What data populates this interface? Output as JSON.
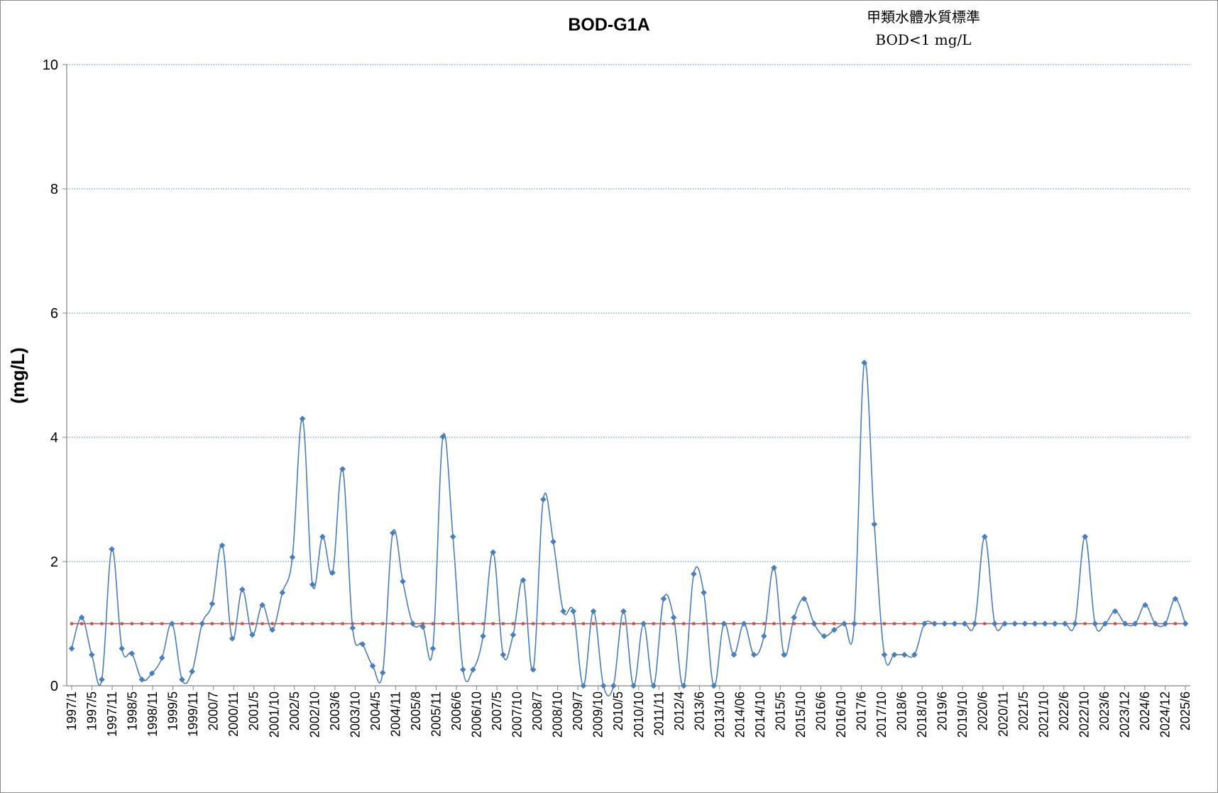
{
  "chart_data": {
    "type": "line",
    "title": "BOD-G1A",
    "annotation": [
      "甲類水體水質標準",
      "BOD<1 mg/L"
    ],
    "ylabel": "(mg/L)",
    "xlabel": "",
    "ylim": [
      0,
      10
    ],
    "yticks": [
      0,
      2,
      4,
      6,
      8,
      10
    ],
    "grid": "horizontal-dotted",
    "legend": "none",
    "x_tick_labels": [
      "1997/1",
      "1997/5",
      "1997/11",
      "1998/5",
      "1998/11",
      "1999/5",
      "1999/11",
      "2000/7",
      "2000/11",
      "2001/5",
      "2001/10",
      "2002/5",
      "2002/10",
      "2003/6",
      "2003/10",
      "2004/5",
      "2004/11",
      "2005/8",
      "2005/11",
      "2006/6",
      "2006/10",
      "2007/5",
      "2007/10",
      "2008/7",
      "2008/10",
      "2009/7",
      "2009/10",
      "2010/5",
      "2010/10",
      "2011/11",
      "2012/4",
      "2013/6",
      "2013/10",
      "2014/06",
      "2014/10",
      "2015/5",
      "2015/10",
      "2016/6",
      "2016/10",
      "2017/6",
      "2017/10",
      "2018/6",
      "2018/10",
      "2019/6",
      "2019/10",
      "2020/6",
      "2020/11",
      "2021/5",
      "2021/10",
      "2022/6",
      "2022/10",
      "2023/6",
      "2023/12",
      "2024/6",
      "2024/12",
      "2025/6"
    ],
    "series": [
      {
        "color": "#4a7ebb",
        "marker": "diamond",
        "smooth": true,
        "values": [
          0.6,
          1.1,
          0.5,
          0.1,
          2.2,
          0.6,
          0.52,
          0.1,
          0.2,
          0.45,
          1.0,
          0.1,
          0.23,
          1.0,
          1.32,
          2.26,
          0.76,
          1.55,
          0.82,
          1.3,
          0.9,
          1.5,
          2.07,
          4.3,
          1.63,
          2.4,
          1.82,
          3.49,
          0.93,
          0.67,
          0.32,
          0.21,
          2.46,
          1.68,
          1.0,
          0.95,
          0.6,
          4.01,
          2.4,
          0.26,
          0.26,
          0.8,
          2.15,
          0.5,
          0.82,
          1.7,
          0.26,
          3.0,
          2.32,
          1.2,
          1.2,
          0.0,
          1.2,
          0.0,
          0.0,
          1.2,
          0.0,
          1.0,
          0.0,
          1.4,
          1.1,
          0.0,
          1.8,
          1.5,
          0.0,
          1.0,
          0.5,
          1.0,
          0.5,
          0.8,
          1.9,
          0.5,
          1.1,
          1.4,
          1.0,
          0.8,
          0.9,
          1.0,
          1.0,
          5.2,
          2.6,
          0.5,
          0.5,
          0.5,
          0.5,
          1.0,
          1.0,
          1.0,
          1.0,
          1.0,
          1.0,
          2.4,
          1.0,
          1.0,
          1.0,
          1.0,
          1.0,
          1.0,
          1.0,
          1.0,
          1.0,
          2.4,
          1.0,
          1.0,
          1.2,
          1.0,
          1.0,
          1.3,
          1.0,
          1.0,
          1.4,
          1.0
        ]
      },
      {
        "color": "#c0504d",
        "marker": "square",
        "smooth": false,
        "values": [
          1,
          1,
          1,
          1,
          1,
          1,
          1,
          1,
          1,
          1,
          1,
          1,
          1,
          1,
          1,
          1,
          1,
          1,
          1,
          1,
          1,
          1,
          1,
          1,
          1,
          1,
          1,
          1,
          1,
          1,
          1,
          1,
          1,
          1,
          1,
          1,
          1,
          1,
          1,
          1,
          1,
          1,
          1,
          1,
          1,
          1,
          1,
          1,
          1,
          1,
          1,
          1,
          1,
          1,
          1,
          1,
          1,
          1,
          1,
          1,
          1,
          1,
          1,
          1,
          1,
          1,
          1,
          1,
          1,
          1,
          1,
          1,
          1,
          1,
          1,
          1,
          1,
          1,
          1,
          1,
          1,
          1,
          1,
          1,
          1,
          1,
          1,
          1,
          1,
          1,
          1,
          1,
          1,
          1,
          1,
          1,
          1,
          1,
          1,
          1,
          1,
          1,
          1,
          1,
          1,
          1,
          1,
          1,
          1,
          1,
          1,
          1
        ]
      }
    ]
  }
}
